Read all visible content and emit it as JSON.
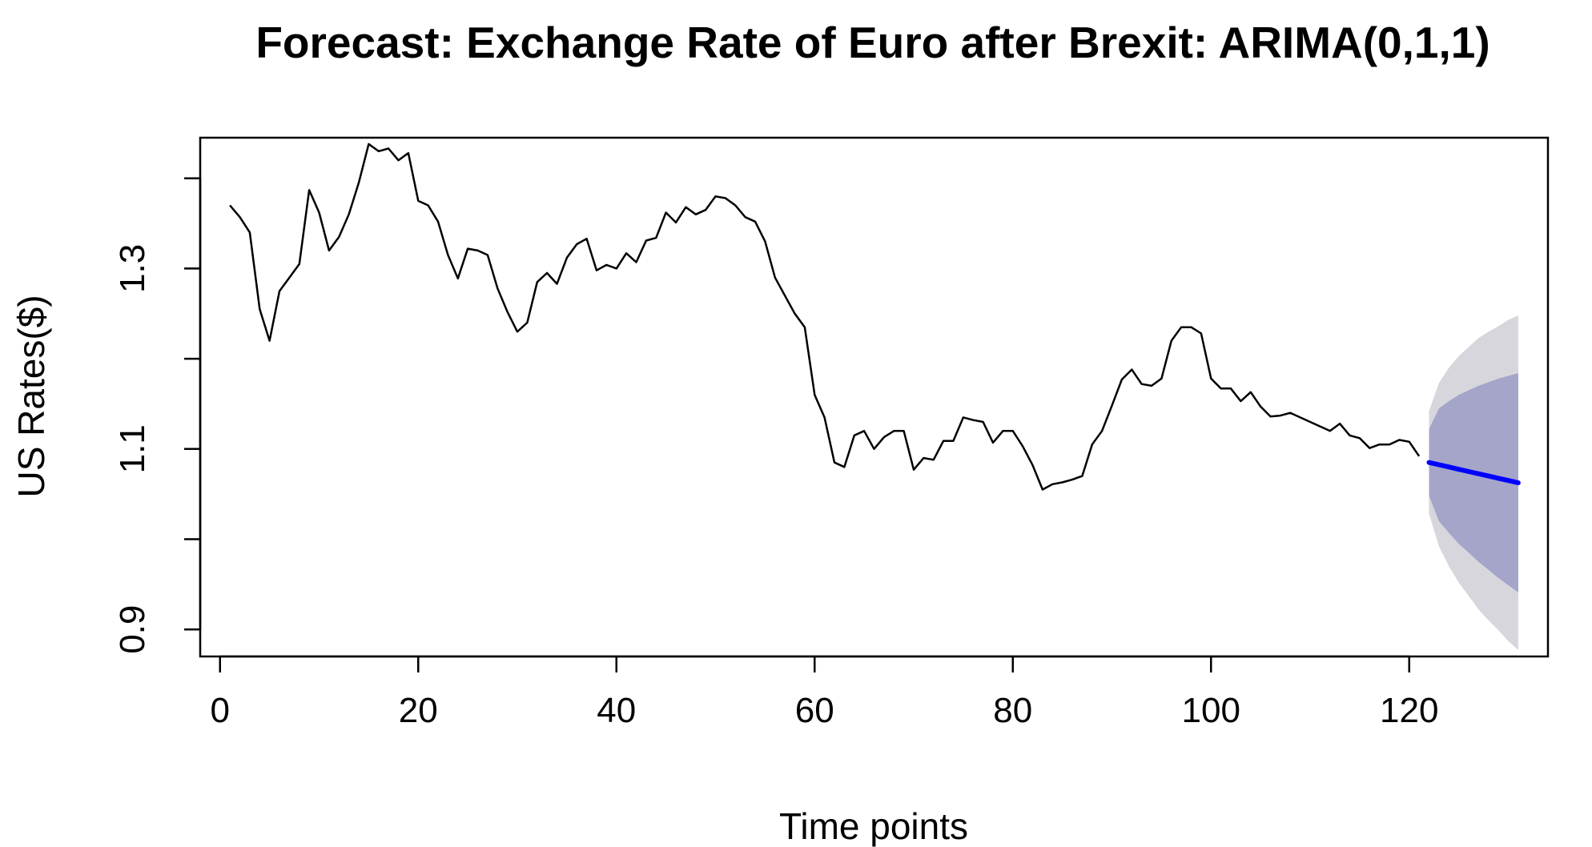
{
  "chart_data": {
    "type": "line",
    "title": "Forecast: Exchange Rate of Euro after Brexit: ARIMA(0,1,1)",
    "xlabel": "Time points",
    "ylabel": "US Rates($)",
    "xlim": [
      -2,
      134
    ],
    "ylim": [
      0.87,
      1.445
    ],
    "x_ticks": [
      0,
      20,
      40,
      60,
      80,
      100,
      120
    ],
    "y_ticks": [
      0.9,
      1.0,
      1.1,
      1.2,
      1.3,
      1.4
    ],
    "y_tick_labels": [
      "0.9",
      "",
      "1.1",
      "",
      "1.3",
      ""
    ],
    "grid": false,
    "observed": {
      "x": [
        1,
        2,
        3,
        4,
        5,
        6,
        7,
        8,
        9,
        10,
        11,
        12,
        13,
        14,
        15,
        16,
        17,
        18,
        19,
        20,
        21,
        22,
        23,
        24,
        25,
        26,
        27,
        28,
        29,
        30,
        31,
        32,
        33,
        34,
        35,
        36,
        37,
        38,
        39,
        40,
        41,
        42,
        43,
        44,
        45,
        46,
        47,
        48,
        49,
        50,
        51,
        52,
        53,
        54,
        55,
        56,
        57,
        58,
        59,
        60,
        61,
        62,
        63,
        64,
        65,
        66,
        67,
        68,
        69,
        70,
        71,
        72,
        73,
        74,
        75,
        76,
        77,
        78,
        79,
        80,
        81,
        82,
        83,
        84,
        85,
        86,
        87,
        88,
        89,
        90,
        91,
        92,
        93,
        94,
        95,
        96,
        97,
        98,
        99,
        100,
        101,
        102,
        103,
        104,
        105,
        106,
        107,
        108,
        109,
        110,
        111,
        112,
        113,
        114,
        115,
        116,
        117,
        118,
        119,
        120,
        121
      ],
      "y": [
        1.37,
        1.357,
        1.34,
        1.255,
        1.22,
        1.275,
        1.29,
        1.305,
        1.387,
        1.362,
        1.32,
        1.335,
        1.36,
        1.395,
        1.438,
        1.43,
        1.433,
        1.42,
        1.428,
        1.375,
        1.37,
        1.352,
        1.315,
        1.289,
        1.322,
        1.32,
        1.315,
        1.278,
        1.252,
        1.23,
        1.24,
        1.285,
        1.295,
        1.283,
        1.312,
        1.327,
        1.333,
        1.298,
        1.304,
        1.3,
        1.317,
        1.307,
        1.331,
        1.334,
        1.362,
        1.351,
        1.368,
        1.36,
        1.365,
        1.38,
        1.378,
        1.37,
        1.357,
        1.352,
        1.33,
        1.29,
        1.27,
        1.25,
        1.235,
        1.16,
        1.135,
        1.085,
        1.08,
        1.115,
        1.12,
        1.1,
        1.113,
        1.12,
        1.12,
        1.077,
        1.09,
        1.088,
        1.109,
        1.109,
        1.135,
        1.132,
        1.13,
        1.107,
        1.12,
        1.12,
        1.103,
        1.082,
        1.055,
        1.061,
        1.063,
        1.066,
        1.07,
        1.105,
        1.12,
        1.148,
        1.177,
        1.188,
        1.172,
        1.17,
        1.178,
        1.22,
        1.235,
        1.235,
        1.228,
        1.178,
        1.167,
        1.167,
        1.153,
        1.163,
        1.147,
        1.136,
        1.137,
        1.14,
        1.135,
        1.13,
        1.125,
        1.12,
        1.128,
        1.115,
        1.112,
        1.101,
        1.105,
        1.105,
        1.11,
        1.108,
        1.092
      ]
    },
    "forecast": {
      "x": [
        122,
        123,
        124,
        125,
        126,
        127,
        128,
        129,
        130,
        131
      ],
      "mean": [
        1.085,
        1.0825,
        1.08,
        1.0775,
        1.075,
        1.0725,
        1.07,
        1.0675,
        1.065,
        1.0625
      ],
      "lo80": [
        1.048,
        1.02,
        1.007,
        0.995,
        0.985,
        0.975,
        0.966,
        0.957,
        0.949,
        0.941
      ],
      "hi80": [
        1.122,
        1.145,
        1.153,
        1.16,
        1.165,
        1.17,
        1.174,
        1.178,
        1.181,
        1.184
      ],
      "lo95": [
        1.028,
        0.992,
        0.97,
        0.952,
        0.937,
        0.922,
        0.91,
        0.899,
        0.887,
        0.877
      ],
      "hi95": [
        1.142,
        1.173,
        1.19,
        1.203,
        1.213,
        1.223,
        1.23,
        1.236,
        1.243,
        1.248
      ]
    },
    "colors": {
      "observed": "#000000",
      "forecast_mean": "#0000ff",
      "band80": "#a4a5c9",
      "band95": "#d6d6dc"
    }
  }
}
